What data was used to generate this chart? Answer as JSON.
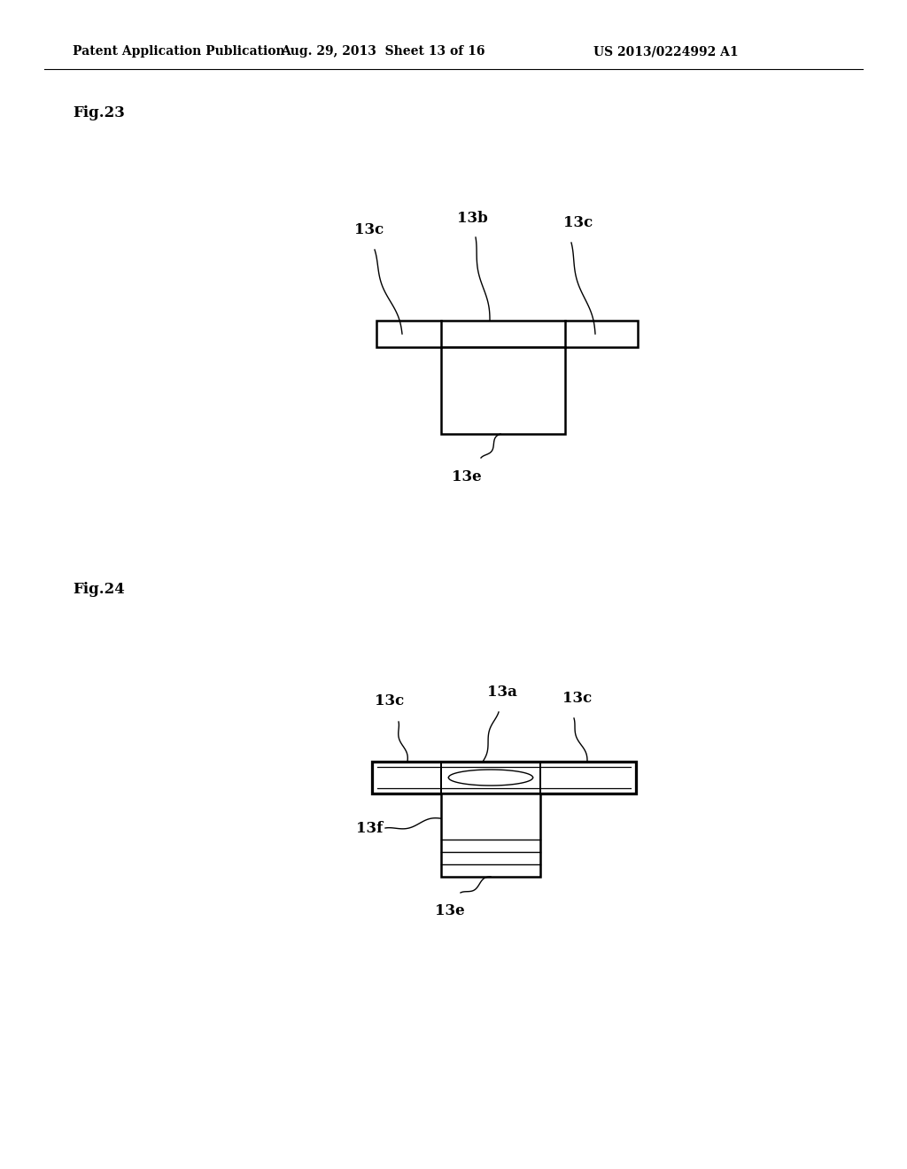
{
  "bg_color": "#ffffff",
  "line_color": "#000000",
  "header_left": "Patent Application Publication",
  "header_mid": "Aug. 29, 2013  Sheet 13 of 16",
  "header_right": "US 2013/0224992 A1",
  "fig23_label": "Fig.23",
  "fig24_label": "Fig.24",
  "fig_width": 10.24,
  "fig_height": 13.2
}
